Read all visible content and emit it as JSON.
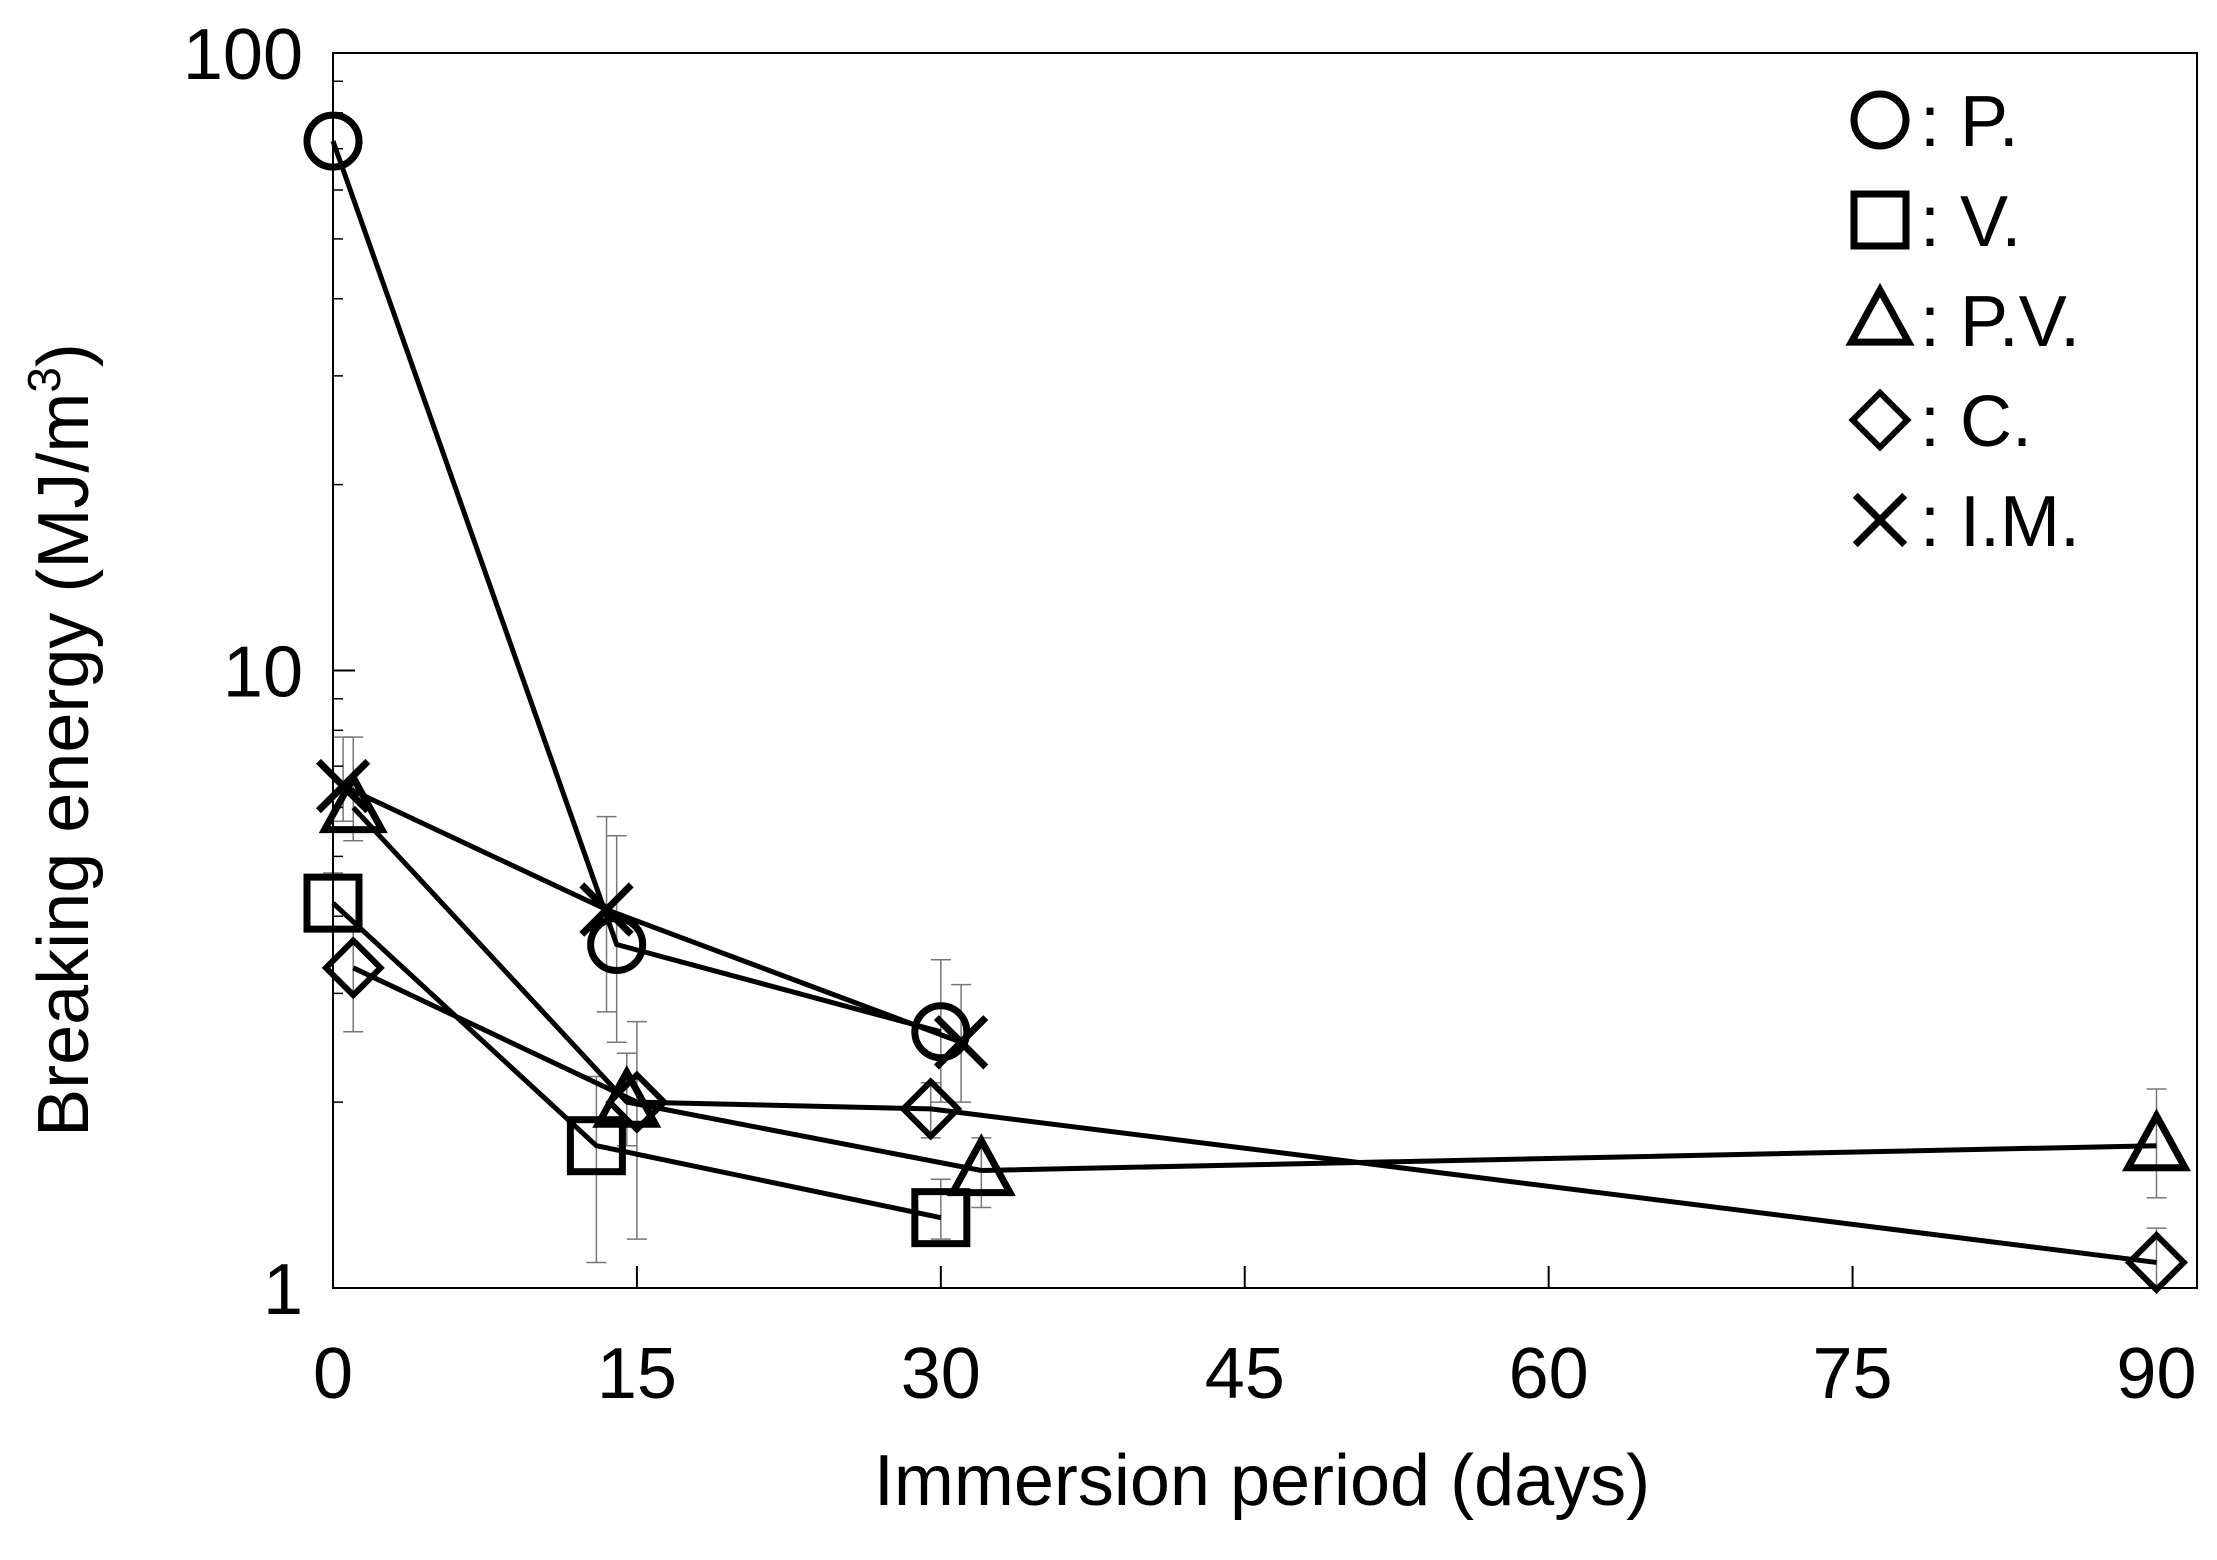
{
  "chart_data": {
    "type": "line",
    "title": "",
    "xlabel": "Immersion period (days)",
    "ylabel_main": "Breaking energy (MJ/m",
    "ylabel_sup": "3",
    "ylabel_close": ")",
    "yscale": "log",
    "xlim": [
      0,
      92
    ],
    "ylim": [
      1,
      100
    ],
    "xticks": [
      0,
      15,
      30,
      45,
      60,
      75,
      90
    ],
    "xtick_labels": [
      "0",
      "15",
      "30",
      "45",
      "60",
      "75",
      "90"
    ],
    "yticks": [
      1,
      10,
      100
    ],
    "ytick_labels": [
      "1",
      "10",
      "100"
    ],
    "grid": false,
    "legend_position": "top-right",
    "series": [
      {
        "name": "P.",
        "symbol": "circle",
        "legend_label": ": P.",
        "x": [
          0,
          14,
          30
        ],
        "y": [
          72,
          3.6,
          2.6
        ],
        "err_lo": [
          null,
          1.1,
          0.6
        ],
        "err_hi": [
          null,
          1.8,
          0.8
        ]
      },
      {
        "name": "V.",
        "symbol": "square",
        "legend_label": ": V.",
        "x": [
          0,
          13,
          30
        ],
        "y": [
          4.2,
          1.7,
          1.3
        ],
        "err_lo": [
          0.4,
          0.6,
          0.1
        ],
        "err_hi": [
          0.5,
          0.5,
          0.2
        ]
      },
      {
        "name": "P.V.",
        "symbol": "triangle",
        "legend_label": ": P.V.",
        "x": [
          1,
          14.5,
          32,
          90
        ],
        "y": [
          6.0,
          2.0,
          1.55,
          1.7
        ],
        "err_lo": [
          0.7,
          0.3,
          0.2,
          0.3
        ],
        "err_hi": [
          1.8,
          0.4,
          0.2,
          0.4
        ]
      },
      {
        "name": "C.",
        "symbol": "diamond",
        "legend_label": ": C.",
        "x": [
          1,
          15,
          29.5,
          90
        ],
        "y": [
          3.3,
          2.0,
          1.95,
          1.1
        ],
        "err_lo": [
          0.7,
          0.8,
          0.2,
          0.1
        ],
        "err_hi": [
          0.5,
          0.7,
          0.2,
          0.15
        ]
      },
      {
        "name": "I.M.",
        "symbol": "x",
        "legend_label": ": I.M.",
        "x": [
          0.5,
          13.5,
          31
        ],
        "y": [
          6.5,
          4.1,
          2.5
        ],
        "err_lo": [
          0.8,
          1.3,
          0.5
        ],
        "err_hi": [
          1.3,
          1.7,
          0.6
        ]
      }
    ]
  }
}
